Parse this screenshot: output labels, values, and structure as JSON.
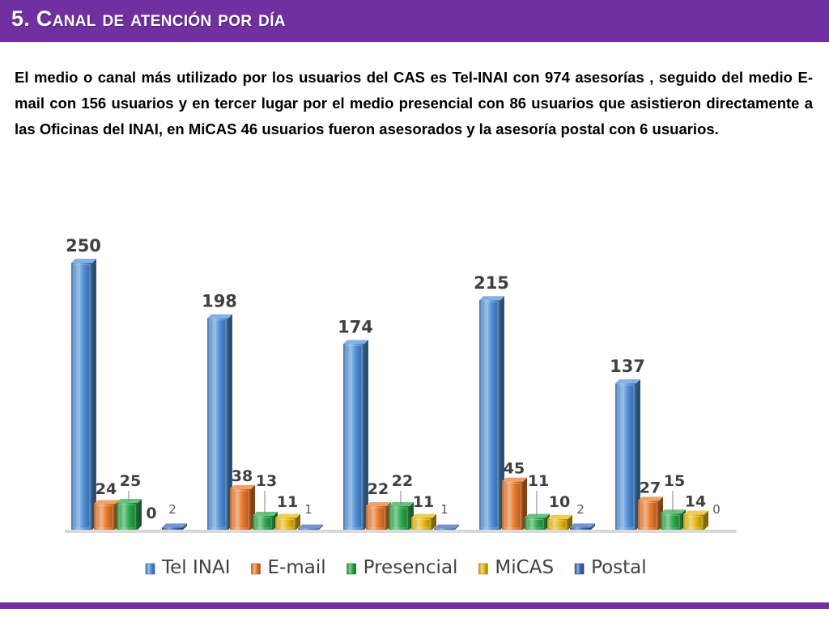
{
  "slide": {
    "title": "5. Canal de atención por día",
    "body": "El medio o canal más utilizado por los usuarios del CAS es Tel-INAI con 974 asesorías , seguido del medio E-mail con 156 usuarios y en tercer lugar por el medio presencial con 86 usuarios que  asistieron directamente a las Oficinas del INAI, en MiCAS 46 usuarios fueron asesorados y la asesoría postal con 6 usuarios."
  },
  "colors": {
    "accent": "#7030a0",
    "tel_inai": "#4f8fd6",
    "email": "#e8792b",
    "presencial": "#2aa748",
    "micas": "#e6b80f",
    "postal": "#3a66b8"
  },
  "chart_data": {
    "type": "bar",
    "categories": [
      "",
      "",
      "",
      "",
      ""
    ],
    "series": [
      {
        "name": "Tel INAI",
        "values": [
          250,
          198,
          174,
          215,
          137
        ]
      },
      {
        "name": "E-mail",
        "values": [
          24,
          38,
          22,
          45,
          27
        ]
      },
      {
        "name": "Presencial",
        "values": [
          25,
          13,
          22,
          11,
          15
        ]
      },
      {
        "name": "MiCAS",
        "values": [
          0,
          11,
          11,
          10,
          14
        ]
      },
      {
        "name": "Postal",
        "values": [
          2,
          1,
          1,
          2,
          0
        ]
      }
    ],
    "ylim": [
      0,
      250
    ],
    "grid": false,
    "legend": "bottom",
    "bar_style": "3d"
  }
}
